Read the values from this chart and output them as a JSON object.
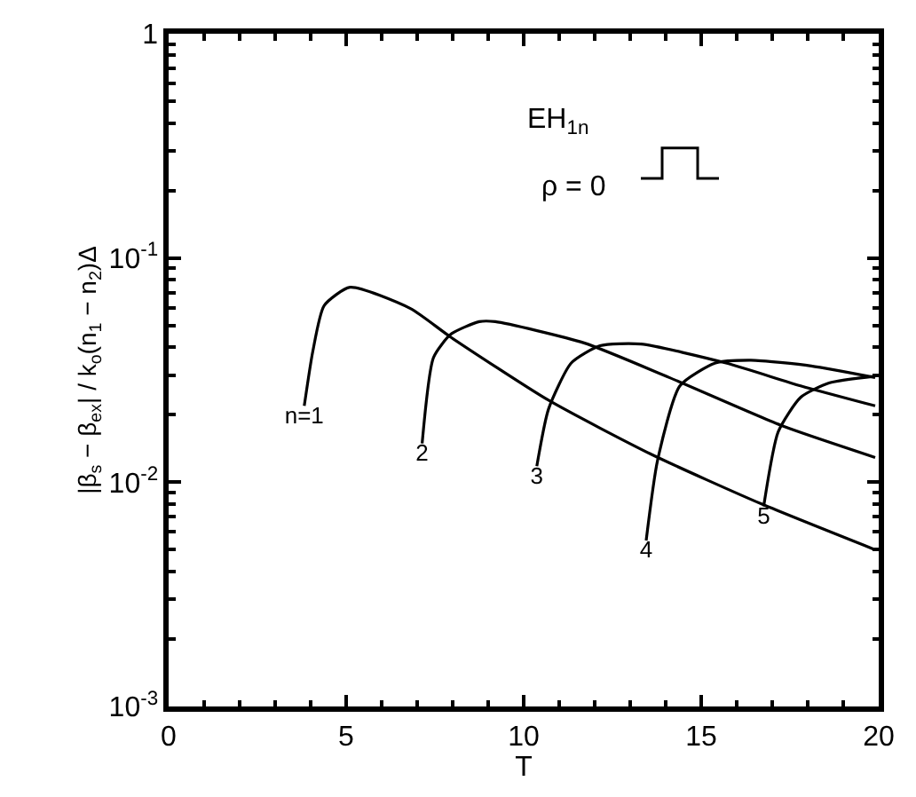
{
  "chart_data": {
    "type": "line",
    "xlabel": "T",
    "ylabel": "|β$_{s}$ − β$_{ex}$| / k$_{o}$(n$_{1}$ − n$_{2}$)Δ",
    "log": "y",
    "xlim": [
      0,
      20
    ],
    "ylim": [
      0.001,
      1
    ],
    "xticks": [
      0,
      5,
      10,
      15,
      20
    ],
    "yticks": [
      1,
      {
        "value": 0.1,
        "label": "10$^{-1}$"
      },
      {
        "value": 0.01,
        "label": "10$^{-2}$"
      },
      {
        "value": 0.001,
        "label": "10$^{-3}$"
      }
    ],
    "grid": false,
    "legend": false,
    "marker": "none",
    "line_style": "solid",
    "annotations": [
      "EH$_{1n}$",
      "ρ = 0"
    ],
    "series": [
      {
        "name": "n=1",
        "color": "#000000",
        "x": [
          3.82,
          4.06,
          4.38,
          5.11,
          6.81,
          7.95,
          10.7,
          13.6,
          16.7,
          19.9
        ],
        "values": [
          0.0219,
          0.0383,
          0.0613,
          0.074,
          0.0595,
          0.0443,
          0.0232,
          0.0133,
          0.008,
          0.005
        ]
      },
      {
        "name": "2",
        "color": "#000000",
        "x": [
          7.14,
          7.46,
          7.95,
          8.75,
          9.2,
          11.7,
          14.1,
          17.3,
          19.9
        ],
        "values": [
          0.0149,
          0.036,
          0.0457,
          0.052,
          0.052,
          0.0418,
          0.0293,
          0.0178,
          0.0129
        ]
      },
      {
        "name": "3",
        "color": "#000000",
        "x": [
          10.37,
          10.7,
          11.34,
          12.15,
          13.3,
          15.7,
          17.8,
          19.9
        ],
        "values": [
          0.0118,
          0.0212,
          0.034,
          0.0406,
          0.0413,
          0.034,
          0.0269,
          0.0219
        ]
      },
      {
        "name": "4",
        "color": "#000000",
        "x": [
          13.45,
          13.77,
          14.4,
          15.4,
          16.4,
          18.1,
          19.9
        ],
        "values": [
          0.0055,
          0.0125,
          0.0269,
          0.034,
          0.035,
          0.033,
          0.0293
        ]
      },
      {
        "name": "5",
        "color": "#000000",
        "x": [
          16.76,
          17.17,
          17.8,
          18.6,
          19.9
        ],
        "values": [
          0.0078,
          0.0168,
          0.0239,
          0.0277,
          0.0297
        ]
      }
    ]
  }
}
